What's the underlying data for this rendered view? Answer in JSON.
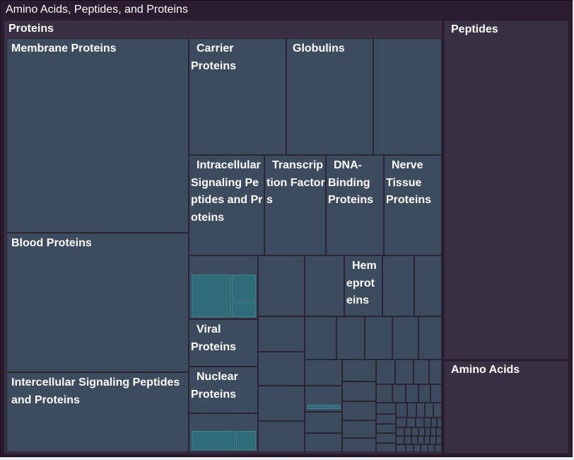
{
  "chart_data": {
    "type": "treemap",
    "title": "Amino Acids, Peptides, and Proteins",
    "groups": [
      {
        "name": "Proteins",
        "children": [
          {
            "name": "Membrane Proteins"
          },
          {
            "name": "Blood Proteins"
          },
          {
            "name": "Intercellular Signaling Peptides and Proteins"
          },
          {
            "name": "Carrier Proteins"
          },
          {
            "name": "Globulins"
          },
          {
            "name": "Intracellular Signaling Peptides and Proteins"
          },
          {
            "name": "Transcription Factors"
          },
          {
            "name": "DNA-Binding Proteins"
          },
          {
            "name": "Nerve Tissue Proteins"
          },
          {
            "name": "Hemeproteins"
          },
          {
            "name": "Viral Proteins"
          },
          {
            "name": "Nuclear Proteins"
          }
        ]
      },
      {
        "name": "Peptides"
      },
      {
        "name": "Amino Acids"
      }
    ],
    "labels": {
      "membrane": "Membrane Proteins",
      "blood": "Blood Proteins",
      "intercellular": "Intercellular Signaling Peptides and Proteins",
      "carrier": "Carrier Proteins",
      "globulins": "Globulins",
      "intracellular": "Intracellular Signaling Peptides and Proteins",
      "transcription": "Transcription Factors",
      "dna": "DNA-Binding Proteins",
      "nerve": "Nerve Tissue Proteins",
      "hemeproteins": "Hemeproteins",
      "viral": "Viral Proteins",
      "nuclear": "Nuclear Proteins"
    },
    "colors": {
      "cell": "#3c4c5e",
      "group": "#3a3043",
      "frame": "#2b1b2e",
      "accent": "#2f6e78"
    }
  }
}
